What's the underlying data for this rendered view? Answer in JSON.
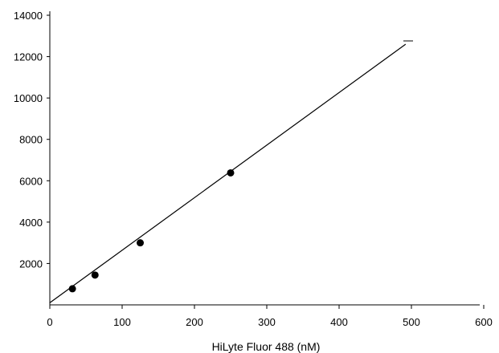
{
  "chart_data": {
    "type": "scatter",
    "title": "",
    "xlabel": "HiLyte Fluor 488 (nM)",
    "ylabel": "",
    "xlim": [
      0,
      600
    ],
    "ylim": [
      0,
      14000
    ],
    "x_ticks": [
      0,
      100,
      200,
      300,
      400,
      500,
      600
    ],
    "y_ticks": [
      2000,
      4000,
      6000,
      8000,
      10000,
      12000,
      14000
    ],
    "grid": false,
    "legend": "none",
    "series": [
      {
        "kind": "points",
        "x": [
          31.25,
          62.5,
          125,
          250
        ],
        "y": [
          780,
          1440,
          3000,
          6380
        ]
      },
      {
        "kind": "fit-line",
        "x": [
          0,
          492
        ],
        "y": [
          100,
          12600
        ]
      }
    ],
    "colors": {
      "axis": "#000000",
      "points": "#000000",
      "line": "#000000"
    }
  }
}
